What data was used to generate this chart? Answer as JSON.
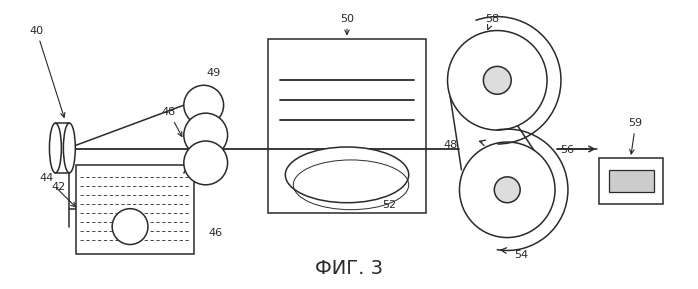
{
  "fig_label": "ФИГ. 3",
  "bg_color": "#ffffff",
  "line_color": "#2a2a2a",
  "fig_width": 6.98,
  "fig_height": 2.89,
  "dpi": 100
}
